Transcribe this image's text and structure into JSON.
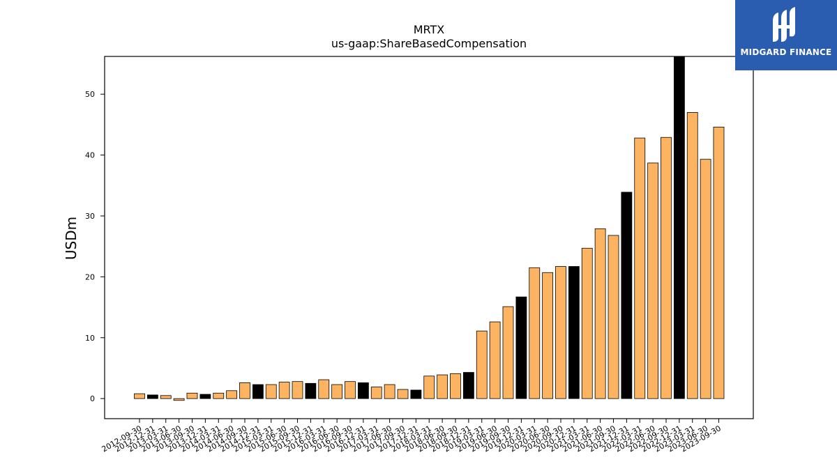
{
  "chart_data": {
    "type": "bar",
    "title": "MRTX",
    "subtitle": "us-gaap:ShareBasedCompensation",
    "xlabel": "",
    "ylabel": "USDm",
    "ylim": [
      -3.3,
      56.2
    ],
    "yticks": [
      0,
      10,
      20,
      30,
      40,
      50
    ],
    "grid": false,
    "categories": [
      "2012-09-30",
      "2012-12-31",
      "2013-03-31",
      "2013-06-30",
      "2013-09-30",
      "2013-12-31",
      "2014-03-31",
      "2014-06-30",
      "2014-09-30",
      "2014-12-31",
      "2015-03-31",
      "2015-06-30",
      "2015-09-30",
      "2015-12-31",
      "2016-03-31",
      "2016-06-30",
      "2016-09-30",
      "2016-12-31",
      "2017-03-31",
      "2017-06-30",
      "2017-09-30",
      "2017-12-31",
      "2018-03-31",
      "2018-06-30",
      "2018-09-30",
      "2018-12-31",
      "2019-03-31",
      "2019-06-30",
      "2019-09-30",
      "2019-12-31",
      "2020-03-31",
      "2020-06-30",
      "2020-09-30",
      "2020-12-31",
      "2021-03-31",
      "2021-06-30",
      "2021-09-30",
      "2021-12-31",
      "2022-03-31",
      "2022-06-30",
      "2022-09-30",
      "2022-12-31",
      "2023-03-31",
      "2023-06-30",
      "2023-09-30"
    ],
    "values": [
      0.8,
      0.6,
      0.5,
      -0.3,
      0.9,
      0.7,
      0.9,
      1.3,
      2.6,
      2.3,
      2.3,
      2.7,
      2.8,
      2.5,
      3.1,
      2.3,
      2.8,
      2.6,
      1.9,
      2.3,
      1.5,
      1.4,
      3.7,
      3.9,
      4.1,
      4.3,
      11.1,
      12.6,
      15.1,
      16.7,
      21.5,
      20.7,
      21.7,
      21.7,
      24.7,
      27.9,
      26.8,
      33.9,
      42.8,
      38.7,
      42.9,
      56.2,
      47.0,
      39.3,
      44.6
    ],
    "quarter_end_year": [
      false,
      true,
      false,
      false,
      false,
      true,
      false,
      false,
      false,
      true,
      false,
      false,
      false,
      true,
      false,
      false,
      false,
      true,
      false,
      false,
      false,
      true,
      false,
      false,
      false,
      true,
      false,
      false,
      false,
      true,
      false,
      false,
      false,
      true,
      false,
      false,
      false,
      true,
      false,
      false,
      false,
      true,
      false,
      false,
      false
    ],
    "colors": {
      "quarter": "#fdb462",
      "year_end": "#000000",
      "edge": "#000000"
    }
  },
  "logo": {
    "text": "MIDGARD FINANCE",
    "bg": "#2a5db0"
  }
}
